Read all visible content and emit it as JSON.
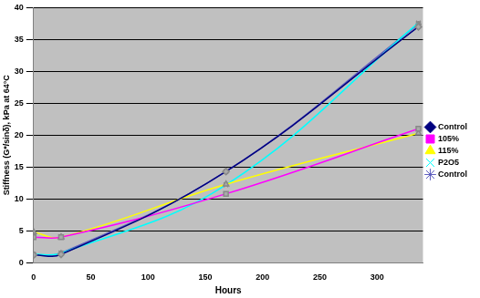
{
  "chart_data": {
    "type": "line",
    "x_label": "Hours",
    "y_label": "Stiffness (G*/sinδ), kPa at 64°C",
    "x": [
      0,
      24,
      168,
      336
    ],
    "series": [
      {
        "name": "Control",
        "color": "#000080",
        "marker": "diamond",
        "values": [
          1.2,
          1.3,
          14.3,
          37.0
        ]
      },
      {
        "name": "105%",
        "color": "#ff00ff",
        "marker": "square",
        "values": [
          4.0,
          4.0,
          10.8,
          21.0
        ]
      },
      {
        "name": "115%",
        "color": "#ffff00",
        "marker": "triangle",
        "values": [
          4.8,
          4.0,
          12.3,
          20.3
        ]
      },
      {
        "name": "P2O5",
        "color": "#00ffff",
        "marker": "cross",
        "values": [
          1.3,
          1.5,
          12.2,
          37.6
        ]
      },
      {
        "name": "Control",
        "color": "#6060c0",
        "marker": "star",
        "values": [
          1.2,
          1.5,
          14.3,
          37.4
        ]
      }
    ],
    "xlim": [
      0,
      340
    ],
    "xticks": [
      0,
      50,
      100,
      150,
      200,
      250,
      300
    ],
    "ylim": [
      0,
      40
    ],
    "yticks": [
      0,
      5,
      10,
      15,
      20,
      25,
      30,
      35,
      40
    ],
    "grid": true,
    "legend": "right"
  }
}
